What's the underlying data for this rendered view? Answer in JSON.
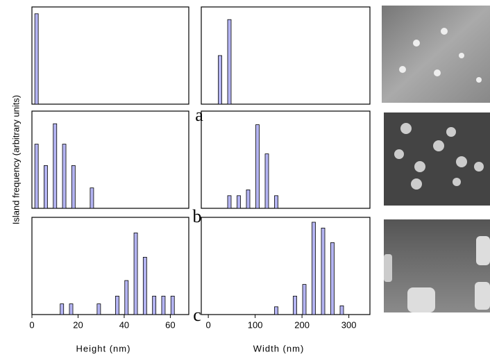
{
  "ylabel": "Island frequency (arbitrary units)",
  "panel_labels": [
    "a",
    "b",
    "c"
  ],
  "chart_data": [
    {
      "type": "bar",
      "color": "#b4b4f2",
      "xlim": [
        0,
        68
      ],
      "ylim": [
        0,
        100
      ],
      "x": [
        2
      ],
      "values": [
        93
      ]
    },
    {
      "type": "bar",
      "color": "#b4b4f2",
      "xlim": [
        -15,
        345
      ],
      "ylim": [
        0,
        100
      ],
      "x": [
        25,
        45
      ],
      "values": [
        50,
        87
      ]
    },
    {
      "type": "bar",
      "color": "#b4b4f2",
      "xlim": [
        0,
        68
      ],
      "ylim": [
        0,
        100
      ],
      "x": [
        2,
        6,
        10,
        14,
        18,
        26
      ],
      "values": [
        66,
        44,
        87,
        66,
        44,
        21
      ]
    },
    {
      "type": "bar",
      "color": "#b4b4f2",
      "xlim": [
        -15,
        345
      ],
      "ylim": [
        0,
        100
      ],
      "x": [
        45,
        65,
        85,
        105,
        125,
        145
      ],
      "values": [
        13,
        13,
        19,
        86,
        56,
        13
      ]
    },
    {
      "type": "bar",
      "color": "#b4b4f2",
      "xlim": [
        0,
        68
      ],
      "ylim": [
        0,
        100
      ],
      "x": [
        13,
        17,
        29,
        37,
        41,
        45,
        49,
        53,
        57,
        61
      ],
      "values": [
        11,
        11,
        11,
        19,
        35,
        84,
        59,
        19,
        19,
        19
      ],
      "xticks": [
        0,
        20,
        40,
        60
      ],
      "xlabel": "Height (nm)"
    },
    {
      "type": "bar",
      "color": "#b4b4f2",
      "xlim": [
        -15,
        345
      ],
      "ylim": [
        0,
        100
      ],
      "x": [
        145,
        185,
        205,
        225,
        245,
        265,
        285
      ],
      "values": [
        8,
        19,
        31,
        95,
        89,
        74,
        9
      ],
      "xticks": [
        0,
        100,
        200,
        300
      ],
      "xlabel": "Width (nm)"
    }
  ]
}
